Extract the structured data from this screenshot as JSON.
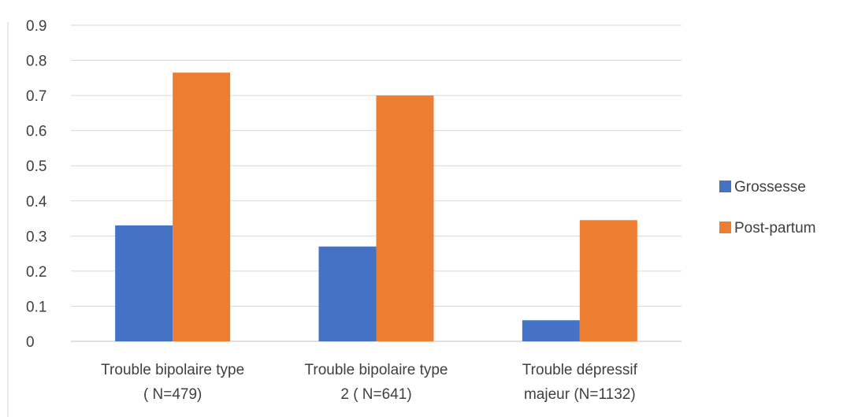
{
  "chart_data": {
    "type": "bar",
    "title": "",
    "xlabel": "",
    "ylabel": "",
    "ylim": [
      0,
      0.9
    ],
    "yticks": [
      "0",
      "0.1",
      "0.2",
      "0.3",
      "0.4",
      "0.5",
      "0.6",
      "0.7",
      "0.8",
      "0.9"
    ],
    "grid": true,
    "legend_position": "right",
    "categories": [
      [
        "Trouble bipolaire type",
        "( N=479)"
      ],
      [
        "Trouble bipolaire type",
        "2 ( N=641)"
      ],
      [
        "Trouble dépressif",
        "majeur (N=1132)"
      ]
    ],
    "series": [
      {
        "name": "Grossesse",
        "color": "#4472c4",
        "values": [
          0.33,
          0.27,
          0.06
        ]
      },
      {
        "name": "Post-partum",
        "color": "#ed7d31",
        "values": [
          0.765,
          0.7,
          0.345
        ]
      }
    ]
  }
}
